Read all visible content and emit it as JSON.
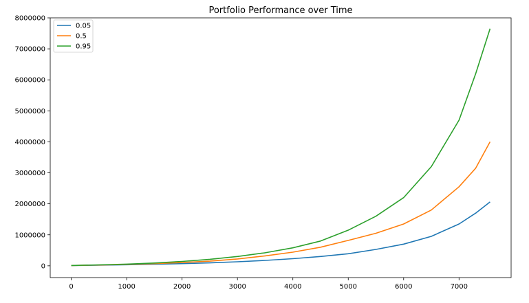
{
  "chart_data": {
    "type": "line",
    "title": "Portfolio Performance over Time",
    "xlabel": "",
    "ylabel": "",
    "xlim": [
      -380,
      7940
    ],
    "ylim": [
      -380000,
      8000000
    ],
    "x_ticks": [
      0,
      1000,
      2000,
      3000,
      4000,
      5000,
      6000,
      7000
    ],
    "x_tick_labels": [
      "0",
      "1000",
      "2000",
      "3000",
      "4000",
      "5000",
      "6000",
      "7000"
    ],
    "y_ticks": [
      0,
      1000000,
      2000000,
      3000000,
      4000000,
      5000000,
      6000000,
      7000000,
      8000000
    ],
    "y_tick_labels": [
      "0",
      "1000000",
      "2000000",
      "3000000",
      "4000000",
      "5000000",
      "6000000",
      "7000000",
      "8000000"
    ],
    "grid": false,
    "legend": "top-left",
    "x": [
      0,
      500,
      1000,
      1500,
      2000,
      2500,
      3000,
      3500,
      4000,
      4500,
      5000,
      5500,
      6000,
      6500,
      7000,
      7300,
      7560
    ],
    "series": [
      {
        "name": "0.05",
        "color": "#1f77b4",
        "values": [
          10000,
          20000,
          35000,
          50000,
          70000,
          95000,
          130000,
          175000,
          230000,
          300000,
          390000,
          530000,
          700000,
          950000,
          1350000,
          1700000,
          2060000
        ]
      },
      {
        "name": "0.5",
        "color": "#ff7f0e",
        "values": [
          10000,
          25000,
          45000,
          70000,
          105000,
          150000,
          220000,
          320000,
          440000,
          600000,
          820000,
          1050000,
          1350000,
          1800000,
          2550000,
          3150000,
          4000000
        ]
      },
      {
        "name": "0.95",
        "color": "#2ca02c",
        "values": [
          10000,
          30000,
          55000,
          90000,
          140000,
          210000,
          300000,
          420000,
          580000,
          800000,
          1150000,
          1600000,
          2200000,
          3200000,
          4700000,
          6200000,
          7650000
        ]
      }
    ]
  }
}
